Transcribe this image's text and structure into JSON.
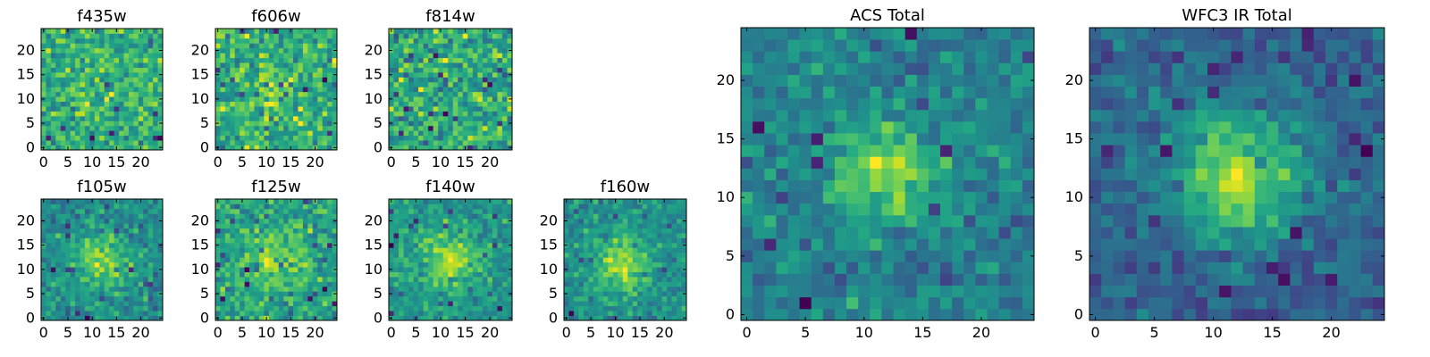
{
  "chart_data": [
    {
      "type": "heatmap",
      "title": "f435w",
      "colormap": "viridis",
      "grid_size": 25,
      "xlim": [
        0,
        24
      ],
      "ylim": [
        0,
        24
      ],
      "xticks": [
        0,
        5,
        10,
        15,
        20
      ],
      "yticks": [
        0,
        5,
        10,
        15,
        20
      ],
      "pattern": "noise"
    },
    {
      "type": "heatmap",
      "title": "f606w",
      "colormap": "viridis",
      "grid_size": 25,
      "xlim": [
        0,
        24
      ],
      "ylim": [
        0,
        24
      ],
      "xticks": [
        0,
        5,
        10,
        15,
        20
      ],
      "yticks": [
        0,
        5,
        10,
        15,
        20
      ],
      "pattern": "noise with faint central source"
    },
    {
      "type": "heatmap",
      "title": "f814w",
      "colormap": "viridis",
      "grid_size": 25,
      "xlim": [
        0,
        24
      ],
      "ylim": [
        0,
        24
      ],
      "xticks": [
        0,
        5,
        10,
        15,
        20
      ],
      "yticks": [
        0,
        5,
        10,
        15,
        20
      ],
      "pattern": "noise"
    },
    {
      "type": "heatmap",
      "title": "f105w",
      "colormap": "viridis",
      "grid_size": 25,
      "xlim": [
        0,
        24
      ],
      "ylim": [
        0,
        24
      ],
      "xticks": [
        0,
        5,
        10,
        15,
        20
      ],
      "yticks": [
        0,
        5,
        10,
        15,
        20
      ],
      "pattern": "central source"
    },
    {
      "type": "heatmap",
      "title": "f125w",
      "colormap": "viridis",
      "grid_size": 25,
      "xlim": [
        0,
        24
      ],
      "ylim": [
        0,
        24
      ],
      "xticks": [
        0,
        5,
        10,
        15,
        20
      ],
      "yticks": [
        0,
        5,
        10,
        15,
        20
      ],
      "pattern": "noise with central source"
    },
    {
      "type": "heatmap",
      "title": "f140w",
      "colormap": "viridis",
      "grid_size": 25,
      "xlim": [
        0,
        24
      ],
      "ylim": [
        0,
        24
      ],
      "xticks": [
        0,
        5,
        10,
        15,
        20
      ],
      "yticks": [
        0,
        5,
        10,
        15,
        20
      ],
      "pattern": "central source"
    },
    {
      "type": "heatmap",
      "title": "f160w",
      "colormap": "viridis",
      "grid_size": 25,
      "xlim": [
        0,
        24
      ],
      "ylim": [
        0,
        24
      ],
      "xticks": [
        0,
        5,
        10,
        15,
        20
      ],
      "yticks": [
        0,
        5,
        10,
        15,
        20
      ],
      "pattern": "central source"
    },
    {
      "type": "heatmap",
      "title": "ACS Total",
      "colormap": "viridis",
      "grid_size": 25,
      "xlim": [
        0,
        24
      ],
      "ylim": [
        0,
        24
      ],
      "xticks": [
        0,
        5,
        10,
        15,
        20
      ],
      "yticks": [
        0,
        5,
        10,
        15,
        20
      ],
      "pattern": "central source"
    },
    {
      "type": "heatmap",
      "title": "WFC3 IR Total",
      "colormap": "viridis",
      "grid_size": 25,
      "xlim": [
        0,
        24
      ],
      "ylim": [
        0,
        24
      ],
      "xticks": [
        0,
        5,
        10,
        15,
        20
      ],
      "yticks": [
        0,
        5,
        10,
        15,
        20
      ],
      "pattern": "bright central source"
    }
  ]
}
